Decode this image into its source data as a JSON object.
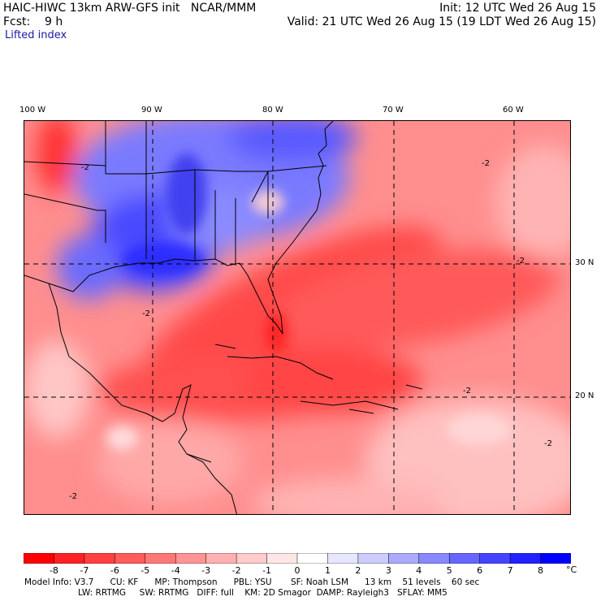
{
  "header": {
    "title_left": "HAIC-HIWC 13km ARW-GFS init   NCAR/MMM",
    "fcst_line": "Fcst:    9 h",
    "field_name": "Lifted index",
    "init_line": "Init: 12 UTC Wed 26 Aug 15",
    "valid_line": "Valid: 21 UTC Wed 26 Aug 15 (19 LDT Wed 26 Aug 15)"
  },
  "map": {
    "longitude_labels": [
      "100 W",
      "90 W",
      "80 W",
      "70 W",
      "60 W"
    ],
    "latitude_labels": [
      "30 N",
      "20 N"
    ],
    "contour_labels": [
      "-2",
      "-2",
      "-2",
      "-2",
      "-2",
      "-2",
      "-2"
    ]
  },
  "colorbar": {
    "tick_labels": [
      "-8",
      "-7",
      "-6",
      "-5",
      "-4",
      "-3",
      "-2",
      "-1",
      "0",
      "1",
      "2",
      "3",
      "4",
      "5",
      "6",
      "7",
      "8"
    ],
    "unit": "°C",
    "colors": [
      "#ff0000",
      "#ff2222",
      "#ff4040",
      "#ff5c5c",
      "#ff7878",
      "#ff9494",
      "#ffb0b0",
      "#ffcccc",
      "#ffe6e6",
      "#ffffff",
      "#e6e6ff",
      "#ccccff",
      "#aaaaff",
      "#8888ff",
      "#6666ff",
      "#4444ff",
      "#2222ff",
      "#0000ff"
    ]
  },
  "model_info": {
    "line1": "Model Info: V3.7      CU: KF      MP: Thompson      PBL: YSU       SF: Noah LSM      13 km    51 levels    60 sec",
    "line2": "LW: RRTMG     SW: RRTMG   DIFF: full    KM: 2D Smagor  DAMP: Rayleigh3   SFLAY: MM5"
  }
}
